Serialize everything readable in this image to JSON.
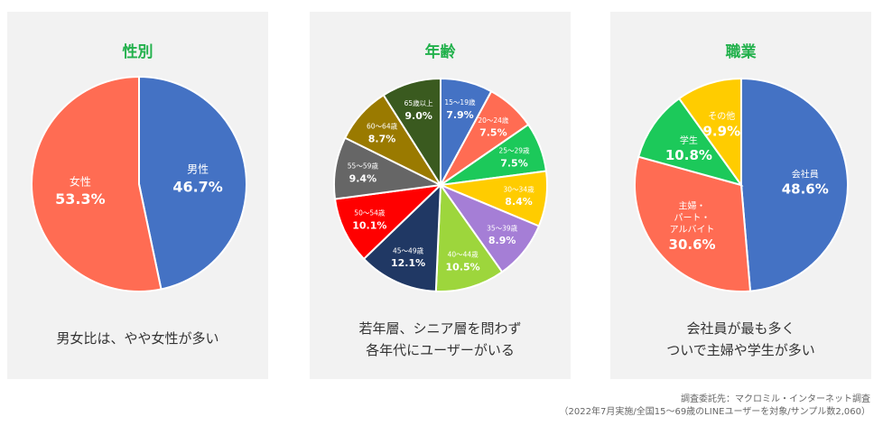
{
  "chart_data": [
    {
      "type": "pie",
      "title": "性別",
      "series": [
        {
          "label": "男性",
          "value": 46.7,
          "value_label": "46.7%",
          "color": "#4472c4"
        },
        {
          "label": "女性",
          "value": 53.3,
          "value_label": "53.3%",
          "color": "#ff6c53"
        }
      ]
    },
    {
      "type": "pie",
      "title": "年齢",
      "series": [
        {
          "label": "15～19歳",
          "value": 7.9,
          "value_label": "7.9%",
          "color": "#4472c4"
        },
        {
          "label": "20～24歳",
          "value": 7.5,
          "value_label": "7.5%",
          "color": "#ff6c53"
        },
        {
          "label": "25～29歳",
          "value": 7.5,
          "value_label": "7.5%",
          "color": "#1cc95a"
        },
        {
          "label": "30～34歳",
          "value": 8.4,
          "value_label": "8.4%",
          "color": "#ffcc00"
        },
        {
          "label": "35～39歳",
          "value": 8.9,
          "value_label": "8.9%",
          "color": "#a57ed6"
        },
        {
          "label": "40～44歳",
          "value": 10.5,
          "value_label": "10.5%",
          "color": "#9dd63c"
        },
        {
          "label": "45～49歳",
          "value": 12.1,
          "value_label": "12.1%",
          "color": "#203864"
        },
        {
          "label": "50～54歳",
          "value": 10.1,
          "value_label": "10.1%",
          "color": "#ff0000"
        },
        {
          "label": "55～59歳",
          "value": 9.4,
          "value_label": "9.4%",
          "color": "#666666"
        },
        {
          "label": "60～64歳",
          "value": 8.7,
          "value_label": "8.7%",
          "color": "#9a7a00"
        },
        {
          "label": "65歳以上",
          "value": 9.0,
          "value_label": "9.0%",
          "color": "#3a5a1f"
        }
      ]
    },
    {
      "type": "pie",
      "title": "職業",
      "series": [
        {
          "label": "会社員",
          "value": 48.6,
          "value_label": "48.6%",
          "color": "#4472c4"
        },
        {
          "label": "主婦・\nパート・\nアルバイト",
          "value": 30.6,
          "value_label": "30.6%",
          "color": "#ff6c53"
        },
        {
          "label": "学生",
          "value": 10.8,
          "value_label": "10.8%",
          "color": "#1cc95a"
        },
        {
          "label": "その他",
          "value": 9.9,
          "value_label": "9.9%",
          "color": "#ffcc00"
        }
      ]
    }
  ],
  "notes": {
    "gender": [
      "男女比は、やや女性が多い"
    ],
    "age": [
      "若年層、シニア層を問わず",
      "各年代にユーザーがいる"
    ],
    "job": [
      "会社員が最も多く",
      "ついで主婦や学生が多い"
    ]
  },
  "source": {
    "line1": "調査委託先：マクロミル・インターネット調査",
    "line2": "（2022年7月実施/全国15～69歳のLINEユーザーを対象/サンプル数2,060）"
  }
}
